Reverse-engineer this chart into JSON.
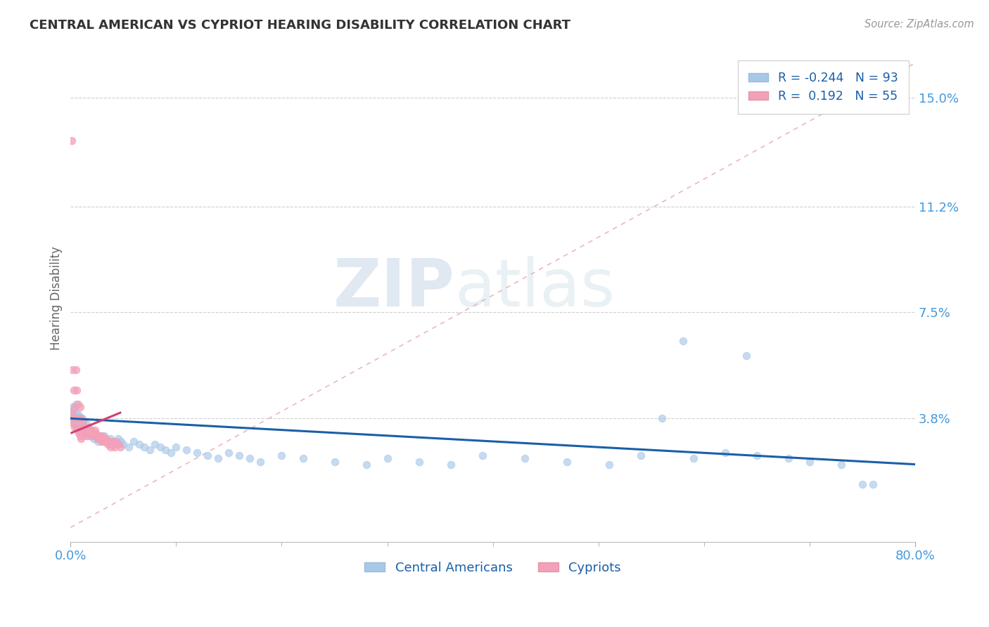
{
  "title": "CENTRAL AMERICAN VS CYPRIOT HEARING DISABILITY CORRELATION CHART",
  "source": "Source: ZipAtlas.com",
  "ylabel": "Hearing Disability",
  "xlim": [
    0.0,
    0.8
  ],
  "ylim": [
    -0.005,
    0.165
  ],
  "yticks": [
    0.0,
    0.038,
    0.075,
    0.112,
    0.15
  ],
  "ytick_labels": [
    "",
    "3.8%",
    "7.5%",
    "11.2%",
    "15.0%"
  ],
  "xticks": [
    0.0,
    0.8
  ],
  "xtick_labels": [
    "0.0%",
    "80.0%"
  ],
  "blue_color": "#a8c8e8",
  "pink_color": "#f4a0b8",
  "trend_blue": "#1a5fa8",
  "trend_pink": "#d04070",
  "ref_line_color": "#e8b0b8",
  "grid_color": "#d0d0d0",
  "title_color": "#333333",
  "axis_label_color": "#666666",
  "tick_color": "#4499dd",
  "watermark_zip": "ZIP",
  "watermark_atlas": "atlas",
  "ca_x": [
    0.001,
    0.002,
    0.002,
    0.003,
    0.003,
    0.004,
    0.004,
    0.005,
    0.005,
    0.006,
    0.006,
    0.006,
    0.007,
    0.007,
    0.008,
    0.008,
    0.009,
    0.009,
    0.01,
    0.01,
    0.011,
    0.011,
    0.012,
    0.012,
    0.013,
    0.013,
    0.014,
    0.015,
    0.015,
    0.016,
    0.017,
    0.018,
    0.019,
    0.02,
    0.021,
    0.022,
    0.023,
    0.024,
    0.025,
    0.026,
    0.027,
    0.028,
    0.03,
    0.032,
    0.034,
    0.036,
    0.038,
    0.04,
    0.042,
    0.045,
    0.048,
    0.05,
    0.055,
    0.06,
    0.065,
    0.07,
    0.075,
    0.08,
    0.085,
    0.09,
    0.095,
    0.1,
    0.11,
    0.12,
    0.13,
    0.14,
    0.15,
    0.16,
    0.17,
    0.18,
    0.2,
    0.22,
    0.25,
    0.28,
    0.3,
    0.33,
    0.36,
    0.39,
    0.43,
    0.47,
    0.51,
    0.54,
    0.56,
    0.59,
    0.62,
    0.65,
    0.68,
    0.7,
    0.73,
    0.76,
    0.58,
    0.64,
    0.75
  ],
  "ca_y": [
    0.04,
    0.042,
    0.038,
    0.036,
    0.041,
    0.039,
    0.037,
    0.043,
    0.038,
    0.04,
    0.036,
    0.038,
    0.037,
    0.035,
    0.039,
    0.036,
    0.038,
    0.034,
    0.037,
    0.035,
    0.038,
    0.034,
    0.036,
    0.033,
    0.035,
    0.032,
    0.034,
    0.036,
    0.033,
    0.035,
    0.034,
    0.033,
    0.032,
    0.034,
    0.033,
    0.031,
    0.033,
    0.032,
    0.031,
    0.03,
    0.032,
    0.031,
    0.03,
    0.032,
    0.031,
    0.03,
    0.031,
    0.03,
    0.029,
    0.031,
    0.03,
    0.029,
    0.028,
    0.03,
    0.029,
    0.028,
    0.027,
    0.029,
    0.028,
    0.027,
    0.026,
    0.028,
    0.027,
    0.026,
    0.025,
    0.024,
    0.026,
    0.025,
    0.024,
    0.023,
    0.025,
    0.024,
    0.023,
    0.022,
    0.024,
    0.023,
    0.022,
    0.025,
    0.024,
    0.023,
    0.022,
    0.025,
    0.038,
    0.024,
    0.026,
    0.025,
    0.024,
    0.023,
    0.022,
    0.015,
    0.065,
    0.06,
    0.015
  ],
  "cy_x": [
    0.001,
    0.001,
    0.002,
    0.002,
    0.003,
    0.003,
    0.004,
    0.004,
    0.005,
    0.005,
    0.006,
    0.006,
    0.007,
    0.007,
    0.008,
    0.008,
    0.009,
    0.009,
    0.01,
    0.01,
    0.011,
    0.011,
    0.012,
    0.013,
    0.014,
    0.015,
    0.016,
    0.017,
    0.018,
    0.019,
    0.02,
    0.021,
    0.022,
    0.023,
    0.024,
    0.025,
    0.026,
    0.027,
    0.028,
    0.029,
    0.03,
    0.031,
    0.032,
    0.033,
    0.034,
    0.035,
    0.036,
    0.037,
    0.038,
    0.039,
    0.04,
    0.042,
    0.043,
    0.045,
    0.047
  ],
  "cy_y": [
    0.135,
    0.04,
    0.055,
    0.038,
    0.048,
    0.036,
    0.042,
    0.035,
    0.055,
    0.038,
    0.048,
    0.035,
    0.043,
    0.034,
    0.038,
    0.033,
    0.042,
    0.032,
    0.038,
    0.031,
    0.035,
    0.033,
    0.037,
    0.035,
    0.033,
    0.034,
    0.032,
    0.035,
    0.033,
    0.032,
    0.034,
    0.033,
    0.032,
    0.034,
    0.033,
    0.032,
    0.031,
    0.032,
    0.031,
    0.03,
    0.032,
    0.031,
    0.03,
    0.031,
    0.03,
    0.029,
    0.03,
    0.029,
    0.028,
    0.03,
    0.029,
    0.028,
    0.03,
    0.029,
    0.028
  ],
  "trend_blue_x0": 0.0,
  "trend_blue_y0": 0.038,
  "trend_blue_x1": 0.8,
  "trend_blue_y1": 0.022,
  "trend_pink_x0": 0.001,
  "trend_pink_y0": 0.033,
  "trend_pink_x1": 0.047,
  "trend_pink_y1": 0.04
}
